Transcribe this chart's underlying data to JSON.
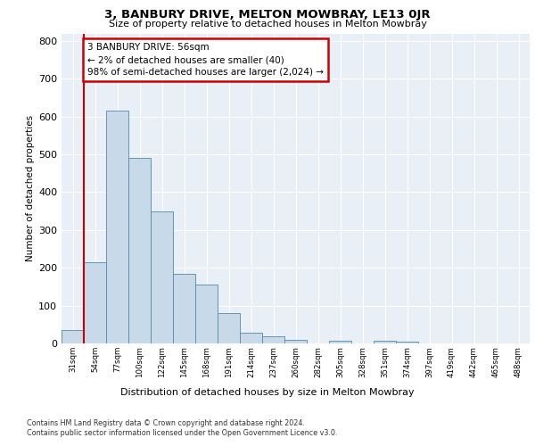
{
  "title": "3, BANBURY DRIVE, MELTON MOWBRAY, LE13 0JR",
  "subtitle": "Size of property relative to detached houses in Melton Mowbray",
  "xlabel": "Distribution of detached houses by size in Melton Mowbray",
  "ylabel": "Number of detached properties",
  "categories": [
    "31sqm",
    "54sqm",
    "77sqm",
    "100sqm",
    "122sqm",
    "145sqm",
    "168sqm",
    "191sqm",
    "214sqm",
    "237sqm",
    "260sqm",
    "282sqm",
    "305sqm",
    "328sqm",
    "351sqm",
    "374sqm",
    "397sqm",
    "419sqm",
    "442sqm",
    "465sqm",
    "488sqm"
  ],
  "values": [
    35,
    215,
    615,
    490,
    350,
    185,
    155,
    80,
    28,
    20,
    10,
    0,
    8,
    0,
    7,
    5,
    0,
    0,
    0,
    0,
    0
  ],
  "bar_color": "#c8d9ea",
  "bar_edge_color": "#5588aa",
  "highlight_color": "#cc0000",
  "annotation_text": "3 BANBURY DRIVE: 56sqm\n← 2% of detached houses are smaller (40)\n98% of semi-detached houses are larger (2,024) →",
  "annotation_box_color": "#ffffff",
  "annotation_box_edge_color": "#cc0000",
  "ylim": [
    0,
    820
  ],
  "yticks": [
    0,
    100,
    200,
    300,
    400,
    500,
    600,
    700,
    800
  ],
  "footer_line1": "Contains HM Land Registry data © Crown copyright and database right 2024.",
  "footer_line2": "Contains public sector information licensed under the Open Government Licence v3.0.",
  "plot_bg_color": "#e8eff6",
  "grid_color": "#ffffff"
}
